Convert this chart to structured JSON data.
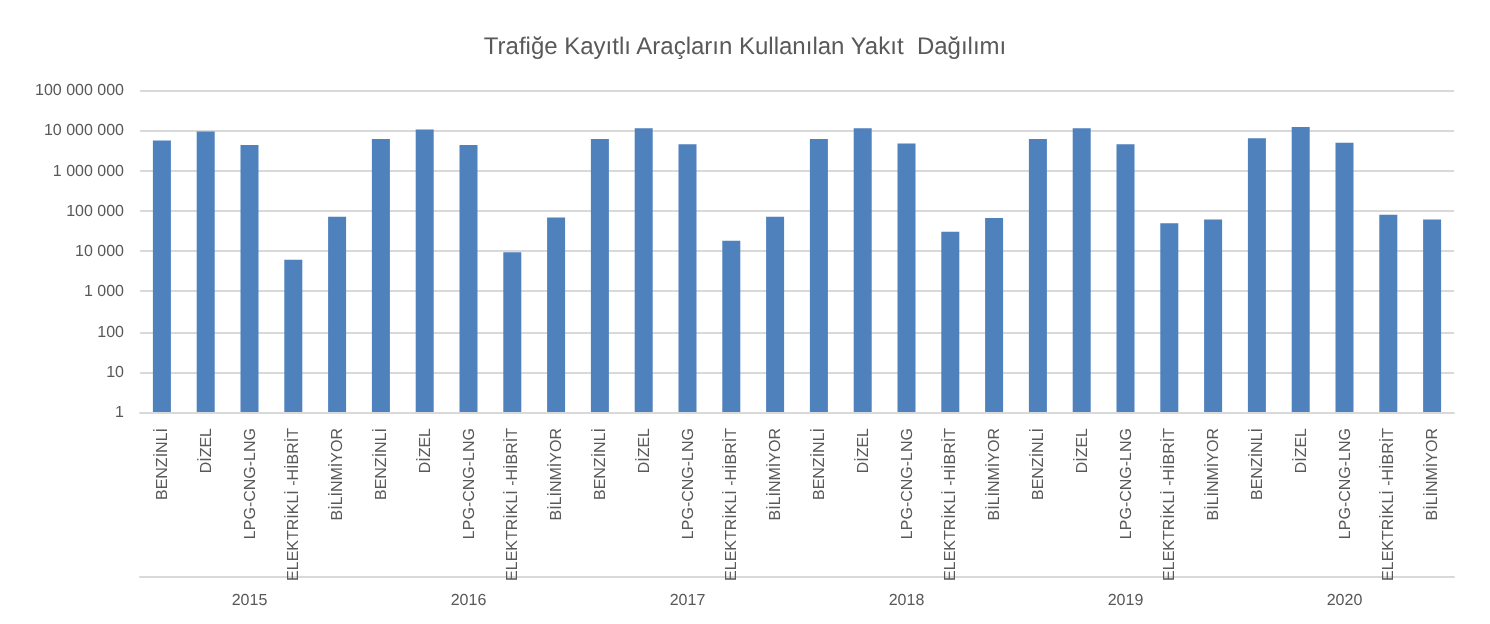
{
  "chart_data": {
    "type": "bar",
    "title": "Trafiğe Kayıtlı Araçların Kullanılan Yakıt  Dağılımı",
    "categories": [
      "BENZİNLİ",
      "DİZEL",
      "LPG-CNG-LNG",
      "ELEKTRİKLİ -HİBRİT",
      "BİLİNMİYOR",
      "BENZİNLİ",
      "DİZEL",
      "LPG-CNG-LNG",
      "ELEKTRİKLİ -HİBRİT",
      "BİLİNMİYOR",
      "BENZİNLİ",
      "DİZEL",
      "LPG-CNG-LNG",
      "ELEKTRİKLİ -HİBRİT",
      "BİLİNMİYOR",
      "BENZİNLİ",
      "DİZEL",
      "LPG-CNG-LNG",
      "ELEKTRİKLİ -HİBRİT",
      "BİLİNMİYOR",
      "BENZİNLİ",
      "DİZEL",
      "LPG-CNG-LNG",
      "ELEKTRİKLİ -HİBRİT",
      "BİLİNMİYOR",
      "BENZİNLİ",
      "DİZEL",
      "LPG-CNG-LNG",
      "ELEKTRİKLİ -HİBRİT",
      "BİLİNMİYOR"
    ],
    "values": [
      5600000,
      9300000,
      4300000,
      6100,
      71000,
      6100000,
      10400000,
      4300000,
      9300,
      68000,
      6100000,
      11200000,
      4500000,
      18000,
      71000,
      6100000,
      11200000,
      4700000,
      30000,
      66000,
      6100000,
      11200000,
      4500000,
      49000,
      61000,
      6300000,
      12100000,
      4900000,
      80000,
      61000
    ],
    "color": "#4f81bd",
    "annotations": [
      "2015",
      "2016",
      "2017",
      "2018",
      "2019",
      "2020"
    ],
    "log": "y",
    "ylim": [
      1,
      100000000
    ],
    "yticks": [
      1,
      10,
      100,
      {
        "value": 1000,
        "label": "1 000"
      },
      {
        "value": 10000,
        "label": "10 000"
      },
      {
        "value": 100000,
        "label": "100 000"
      },
      {
        "value": 1000000,
        "label": "1 000 000"
      },
      {
        "value": 10000000,
        "label": "10 000 000"
      },
      {
        "value": 100000000,
        "label": "100 000 000"
      }
    ],
    "grid": "y"
  }
}
